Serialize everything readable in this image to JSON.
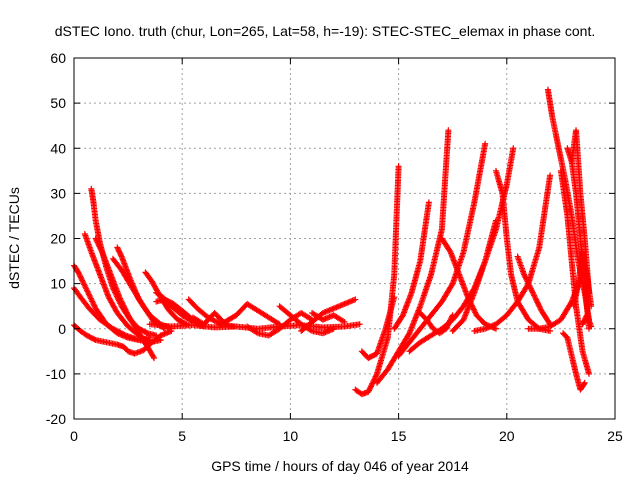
{
  "chart_data": {
    "type": "scatter",
    "title": "dSTEC Iono. truth (chur, Lon=265, Lat=58, h=-19): STEC-STEC_elemax in phase cont.",
    "xlabel": "GPS time / hours of day 046 of year 2014",
    "ylabel": "dSTEC  / TECUs",
    "xlim": [
      0,
      25
    ],
    "ylim": [
      -20,
      60
    ],
    "xticks": [
      0,
      5,
      10,
      15,
      20,
      25
    ],
    "yticks": [
      -20,
      -10,
      0,
      10,
      20,
      30,
      40,
      50,
      60
    ],
    "grid": true,
    "marker": "+",
    "color": "#ff0000",
    "series": [
      {
        "x": [
          0.0,
          0.3,
          0.6,
          1.0,
          1.5,
          2.0,
          2.3,
          2.5,
          2.8,
          3.2,
          3.6,
          4.0,
          4.5
        ],
        "y": [
          0.8,
          -0.5,
          -1.5,
          -2.5,
          -3.0,
          -3.5,
          -4.0,
          -5.0,
          -5.5,
          -4.8,
          -3.0,
          -1.5,
          -0.5
        ]
      },
      {
        "x": [
          0.0,
          0.2,
          0.5,
          1.0,
          1.5,
          2.0,
          2.5,
          3.0,
          3.5
        ],
        "y": [
          14.0,
          12.5,
          9.5,
          4.5,
          1.0,
          -1.0,
          -2.0,
          -2.5,
          -2.0
        ]
      },
      {
        "x": [
          0.0,
          0.3,
          0.7,
          1.2,
          1.8,
          2.4,
          3.0,
          3.5,
          4.0
        ],
        "y": [
          9.0,
          7.0,
          4.5,
          2.0,
          0.0,
          -1.5,
          -2.5,
          -3.0,
          -2.5
        ]
      },
      {
        "x": [
          0.5,
          0.8,
          1.2,
          1.6,
          2.0,
          2.5,
          3.0,
          3.5,
          4.0
        ],
        "y": [
          21.0,
          17.0,
          12.0,
          7.0,
          3.5,
          0.5,
          -1.5,
          -3.0,
          -2.5
        ]
      },
      {
        "x": [
          0.8,
          0.9,
          1.0,
          1.2,
          1.5,
          1.8,
          2.2,
          2.6,
          3.0,
          3.4,
          3.8
        ],
        "y": [
          31.0,
          28.0,
          24.0,
          19.0,
          13.5,
          9.0,
          5.0,
          2.0,
          0.0,
          -1.0,
          -1.5
        ]
      },
      {
        "x": [
          1.0,
          1.3,
          1.7,
          2.1,
          2.5,
          3.0,
          3.4,
          3.7
        ],
        "y": [
          20.0,
          17.0,
          12.0,
          7.0,
          3.0,
          -1.0,
          -4.0,
          -6.5
        ]
      },
      {
        "x": [
          2.0,
          2.2,
          2.6,
          3.0,
          3.5,
          4.0,
          4.5
        ],
        "y": [
          18.0,
          16.0,
          11.0,
          6.5,
          3.0,
          1.0,
          0.0
        ]
      },
      {
        "x": [
          1.8,
          2.2,
          2.7,
          3.2,
          3.7,
          4.2
        ],
        "y": [
          15.5,
          13.0,
          9.0,
          5.0,
          1.5,
          0.0
        ]
      },
      {
        "x": [
          3.3,
          3.6,
          4.0,
          4.4,
          4.8,
          5.2
        ],
        "y": [
          12.5,
          10.5,
          7.0,
          4.0,
          2.0,
          1.0
        ]
      },
      {
        "x": [
          3.8,
          4.1,
          4.5,
          5.0,
          5.5,
          6.0
        ],
        "y": [
          8.0,
          7.0,
          5.0,
          3.0,
          1.5,
          0.5
        ]
      },
      {
        "x": [
          3.8,
          4.2,
          4.6,
          5.0,
          5.5,
          6.0
        ],
        "y": [
          6.0,
          6.5,
          5.5,
          4.0,
          2.0,
          0.5
        ]
      },
      {
        "x": [
          3.5,
          4.5,
          5.5,
          6.5,
          7.5,
          8.5,
          9.5,
          10.5,
          11.5,
          12.5,
          13.2
        ],
        "y": [
          1.0,
          0.5,
          0.8,
          0.3,
          0.5,
          0.0,
          0.5,
          0.8,
          0.3,
          0.5,
          1.0
        ]
      },
      {
        "x": [
          5.3,
          5.7,
          6.2,
          6.8,
          7.4
        ],
        "y": [
          6.5,
          4.5,
          2.5,
          1.0,
          0.5
        ]
      },
      {
        "x": [
          5.5,
          6.0,
          6.5,
          7.0
        ],
        "y": [
          2.5,
          1.0,
          3.5,
          1.0
        ]
      },
      {
        "x": [
          6.8,
          7.5,
          8.0,
          8.5,
          9.0,
          9.5
        ],
        "y": [
          1.0,
          3.0,
          5.5,
          4.0,
          2.5,
          1.0
        ]
      },
      {
        "x": [
          8.0,
          8.5,
          9.0,
          9.5,
          10.0,
          10.5,
          11.0
        ],
        "y": [
          0.5,
          -1.0,
          -1.5,
          0.0,
          2.0,
          3.5,
          2.0
        ]
      },
      {
        "x": [
          9.5,
          10.0,
          10.5,
          11.0,
          11.5,
          12.0
        ],
        "y": [
          5.0,
          3.0,
          1.0,
          -0.5,
          -1.0,
          0.0
        ]
      },
      {
        "x": [
          10.5,
          11.0,
          11.5,
          12.0,
          12.5,
          13.0
        ],
        "y": [
          -0.5,
          1.5,
          3.5,
          4.5,
          5.5,
          6.5
        ]
      },
      {
        "x": [
          11.0,
          11.5,
          12.0,
          12.5
        ],
        "y": [
          3.5,
          2.0,
          3.0,
          1.5
        ]
      },
      {
        "x": [
          13.0,
          13.3,
          13.6,
          14.0,
          14.5,
          14.8,
          15.0
        ],
        "y": [
          -13.5,
          -14.5,
          -14.0,
          -10.0,
          -2.0,
          12.0,
          36.0
        ]
      },
      {
        "x": [
          13.3,
          13.6,
          14.0,
          14.4,
          14.8
        ],
        "y": [
          -5.0,
          -6.5,
          -5.5,
          0.0,
          7.0
        ]
      },
      {
        "x": [
          14.0,
          14.5,
          15.0,
          15.5,
          16.0,
          16.5,
          17.0,
          17.3
        ],
        "y": [
          -12.0,
          -9.0,
          -5.0,
          -1.0,
          5.0,
          12.0,
          22.0,
          44.0
        ]
      },
      {
        "x": [
          14.8,
          15.2,
          15.6,
          16.0,
          16.4
        ],
        "y": [
          0.0,
          3.0,
          8.0,
          15.0,
          28.0
        ]
      },
      {
        "x": [
          15.0,
          15.5,
          16.0,
          16.5,
          17.0,
          17.5,
          18.0,
          18.5,
          19.0
        ],
        "y": [
          -6.0,
          -3.0,
          0.0,
          3.0,
          6.0,
          10.0,
          17.0,
          28.0,
          41.0
        ]
      },
      {
        "x": [
          15.5,
          16.0,
          16.5,
          17.0,
          17.5,
          18.0,
          18.5,
          19.0,
          19.5,
          20.0,
          20.3
        ],
        "y": [
          -5.0,
          -3.0,
          -1.5,
          0.0,
          2.0,
          5.0,
          9.0,
          15.0,
          22.0,
          32.0,
          40.0
        ]
      },
      {
        "x": [
          16.0,
          16.3,
          16.6,
          16.9,
          17.2,
          17.5
        ],
        "y": [
          3.5,
          2.0,
          0.0,
          -1.0,
          0.0,
          3.0
        ]
      },
      {
        "x": [
          17.0,
          17.4,
          17.8,
          18.2,
          18.6,
          19.0,
          19.5
        ],
        "y": [
          20.0,
          17.0,
          12.0,
          7.0,
          3.0,
          1.0,
          0.0
        ]
      },
      {
        "x": [
          17.5,
          18.0,
          18.5,
          19.0,
          19.5
        ],
        "y": [
          -0.5,
          2.0,
          8.0,
          15.0,
          24.0
        ]
      },
      {
        "x": [
          19.5,
          19.8,
          20.0,
          20.2,
          20.5,
          21.0,
          21.5,
          22.0
        ],
        "y": [
          35.0,
          30.0,
          20.0,
          12.0,
          6.0,
          2.0,
          0.0,
          -0.5
        ]
      },
      {
        "x": [
          18.5,
          19.0,
          19.5,
          20.0,
          20.5,
          21.0,
          21.5,
          22.0
        ],
        "y": [
          -0.5,
          0.0,
          1.0,
          3.0,
          6.0,
          10.0,
          18.0,
          34.0
        ]
      },
      {
        "x": [
          20.5,
          20.8,
          21.2,
          21.6,
          22.0
        ],
        "y": [
          16.0,
          12.0,
          8.0,
          4.0,
          1.0
        ]
      },
      {
        "x": [
          21.0,
          21.5,
          22.0,
          22.5,
          23.0,
          23.5
        ],
        "y": [
          0.0,
          0.0,
          0.5,
          2.0,
          6.0,
          12.0
        ]
      },
      {
        "x": [
          21.9,
          22.1,
          22.4,
          22.7,
          23.0,
          23.3,
          23.6,
          23.8
        ],
        "y": [
          53.0,
          47.0,
          40.0,
          33.0,
          25.0,
          15.0,
          8.0,
          2.0
        ]
      },
      {
        "x": [
          22.5,
          22.8,
          23.0,
          23.2,
          23.5,
          23.8
        ],
        "y": [
          35.0,
          25.0,
          15.0,
          5.0,
          -5.0,
          -10.0
        ]
      },
      {
        "x": [
          22.6,
          22.8,
          23.0,
          23.2,
          23.4,
          23.6
        ],
        "y": [
          -1.0,
          -2.0,
          -6.0,
          -10.0,
          -13.5,
          -12.0
        ]
      },
      {
        "x": [
          22.8,
          23.0,
          23.2,
          23.4,
          23.6,
          23.8
        ],
        "y": [
          40.0,
          37.0,
          30.0,
          20.0,
          10.0,
          0.0
        ]
      },
      {
        "x": [
          23.0,
          23.2,
          23.4,
          23.6,
          23.8
        ],
        "y": [
          37.0,
          44.0,
          30.0,
          20.0,
          8.0
        ]
      },
      {
        "x": [
          23.1,
          23.3,
          23.5,
          23.7,
          23.9
        ],
        "y": [
          5.0,
          10.0,
          17.0,
          12.0,
          5.0
        ]
      },
      {
        "x": [
          23.5,
          23.7,
          23.9
        ],
        "y": [
          1.0,
          3.0,
          0.5
        ]
      }
    ]
  }
}
